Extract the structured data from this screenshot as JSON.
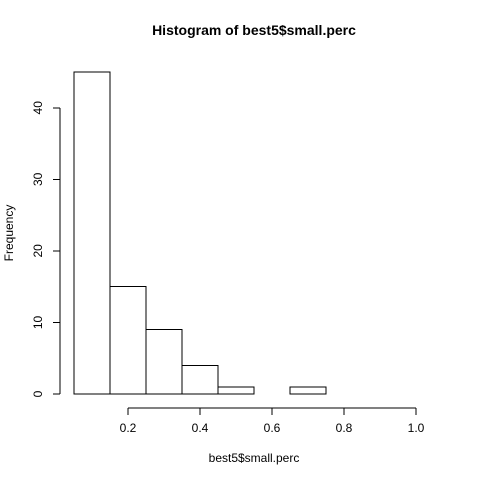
{
  "chart_data": {
    "type": "bar",
    "title": "Histogram of best5$small.perc",
    "xlabel": "best5$small.perc",
    "ylabel": "Frequency",
    "bins": [
      {
        "start": 0.05,
        "end": 0.15,
        "count": 45
      },
      {
        "start": 0.15,
        "end": 0.25,
        "count": 15
      },
      {
        "start": 0.25,
        "end": 0.35,
        "count": 9
      },
      {
        "start": 0.35,
        "end": 0.45,
        "count": 4
      },
      {
        "start": 0.45,
        "end": 0.55,
        "count": 1
      },
      {
        "start": 0.55,
        "end": 0.65,
        "count": 0
      },
      {
        "start": 0.65,
        "end": 0.75,
        "count": 1
      },
      {
        "start": 0.75,
        "end": 0.85,
        "count": 0
      },
      {
        "start": 0.85,
        "end": 0.95,
        "count": 0
      },
      {
        "start": 0.95,
        "end": 1.05,
        "count": 0
      }
    ],
    "xlim": [
      0.05,
      1.05
    ],
    "ylim": [
      0,
      45
    ],
    "x_ticks": [
      0.2,
      0.4,
      0.6,
      0.8,
      1.0
    ],
    "x_tick_labels": [
      "0.2",
      "0.4",
      "0.6",
      "0.8",
      "1.0"
    ],
    "y_ticks": [
      0,
      10,
      20,
      30,
      40
    ],
    "y_tick_labels": [
      "0",
      "10",
      "20",
      "30",
      "40"
    ],
    "grid": false,
    "fill_color": "#ffffff",
    "stroke_color": "#000000"
  }
}
